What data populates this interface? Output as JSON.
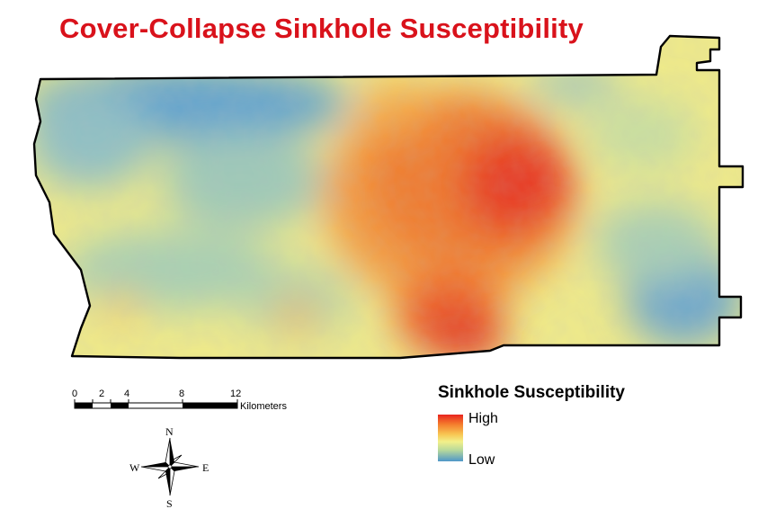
{
  "title": "Cover-Collapse Sinkhole Susceptibility",
  "colors": {
    "title": "#d9121b",
    "outline": "#000000",
    "high": "#e8241e",
    "mid_high": "#f47a2c",
    "mid": "#f2f08a",
    "low": "#4f97c9"
  },
  "scale_bar": {
    "ticks": [
      "0",
      "2",
      "4",
      "8",
      "12"
    ],
    "unit": "Kilometers"
  },
  "north_arrow": {
    "icon": "compass-rose-icon",
    "n": "N",
    "s": "S",
    "e": "E",
    "w": "W"
  },
  "legend": {
    "title": "Sinkhole Susceptibility",
    "high_label": "High",
    "low_label": "Low"
  }
}
